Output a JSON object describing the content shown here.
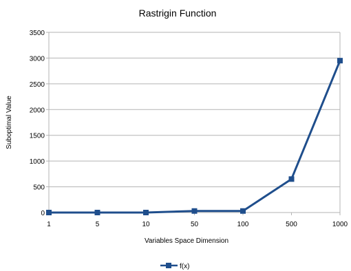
{
  "chart_data": {
    "type": "line",
    "title": "Rastrigin Function",
    "xlabel": "Variables Space Dimension",
    "ylabel": "Suboptimal Value",
    "categories": [
      "1",
      "5",
      "10",
      "50",
      "100",
      "500",
      "1000"
    ],
    "series": [
      {
        "name": "f(x)",
        "values": [
          0,
          0,
          0,
          30,
          30,
          650,
          2950
        ],
        "color": "#1f4e8c",
        "marker": "square"
      }
    ],
    "ylim": [
      0,
      3500
    ],
    "yticks": [
      0,
      500,
      1000,
      1500,
      2000,
      2500,
      3000,
      3500
    ],
    "grid": true,
    "legend_position": "bottom"
  }
}
